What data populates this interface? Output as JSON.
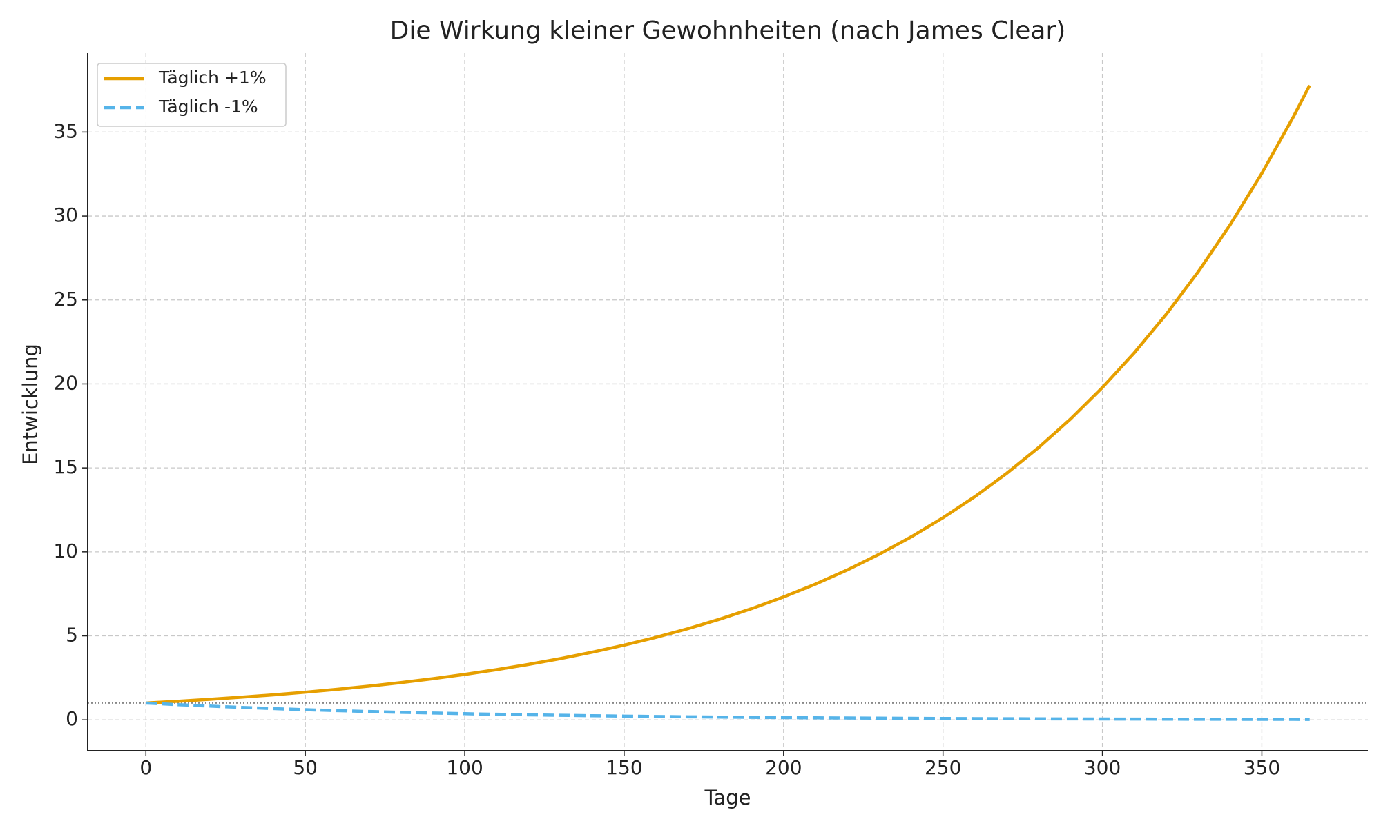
{
  "chart_data": {
    "type": "line",
    "title": "Die Wirkung kleiner Gewohnheiten (nach James Clear)",
    "x_label": "Tage",
    "y_label": "Entwicklung",
    "x": [
      0,
      10,
      20,
      30,
      40,
      50,
      60,
      70,
      80,
      90,
      100,
      110,
      120,
      130,
      140,
      150,
      160,
      170,
      180,
      190,
      200,
      210,
      220,
      230,
      240,
      250,
      260,
      270,
      280,
      290,
      300,
      310,
      320,
      330,
      340,
      350,
      360,
      365
    ],
    "series": [
      {
        "name": "Täglich +1%",
        "color": "#e69f00",
        "linestyle": "solid",
        "values": [
          1,
          1.105,
          1.22,
          1.348,
          1.489,
          1.645,
          1.817,
          2.007,
          2.217,
          2.449,
          2.705,
          2.988,
          3.3,
          3.645,
          4.027,
          4.448,
          4.913,
          5.427,
          5.995,
          6.622,
          7.316,
          8.081,
          8.926,
          9.86,
          10.892,
          12.032,
          13.29,
          14.681,
          16.217,
          17.914,
          19.788,
          21.858,
          24.145,
          26.671,
          29.461,
          32.544,
          35.949,
          37.783
        ]
      },
      {
        "name": "Täglich -1%",
        "color": "#56b4e9",
        "linestyle": "dashed",
        "values": [
          1,
          0.904,
          0.818,
          0.74,
          0.669,
          0.605,
          0.547,
          0.495,
          0.448,
          0.405,
          0.366,
          0.331,
          0.299,
          0.271,
          0.245,
          0.221,
          0.2,
          0.181,
          0.164,
          0.148,
          0.134,
          0.121,
          0.11,
          0.099,
          0.09,
          0.081,
          0.073,
          0.066,
          0.06,
          0.054,
          0.049,
          0.044,
          0.04,
          0.036,
          0.033,
          0.03,
          0.027,
          0.026
        ]
      }
    ],
    "hline": 1,
    "xlim": [
      -18.25,
      383.25
    ],
    "ylim": [
      -1.84,
      39.7
    ],
    "xticks": [
      0,
      50,
      100,
      150,
      200,
      250,
      300,
      350
    ],
    "yticks": [
      0,
      5,
      10,
      15,
      20,
      25,
      30,
      35
    ],
    "grid": true,
    "legend": "upper left"
  }
}
